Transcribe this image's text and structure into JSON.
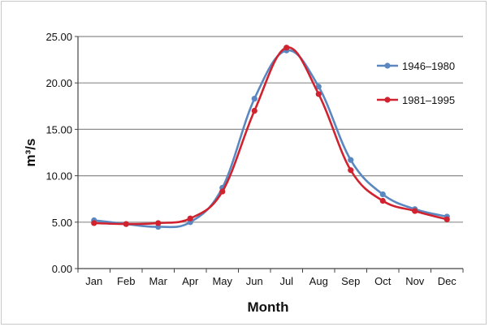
{
  "chart_data": {
    "type": "line",
    "title": "",
    "xlabel": "Month",
    "ylabel": "m³/s",
    "categories": [
      "Jan",
      "Feb",
      "Mar",
      "Apr",
      "May",
      "Jun",
      "Jul",
      "Aug",
      "Sep",
      "Oct",
      "Nov",
      "Dec"
    ],
    "ylim": [
      0,
      25
    ],
    "yticks": [
      "0.00",
      "5.00",
      "10.00",
      "15.00",
      "20.00",
      "25.00"
    ],
    "grid": true,
    "legend_position": "top-right",
    "series": [
      {
        "name": "1946–1980",
        "color": "#5b87c0",
        "values": [
          5.2,
          4.8,
          4.5,
          5.0,
          8.7,
          18.3,
          23.5,
          19.6,
          11.7,
          8.0,
          6.4,
          5.6
        ]
      },
      {
        "name": "1981–1995",
        "color": "#d0232f",
        "values": [
          4.9,
          4.8,
          4.9,
          5.4,
          8.3,
          17.0,
          23.8,
          18.8,
          10.6,
          7.3,
          6.2,
          5.3
        ]
      }
    ]
  }
}
